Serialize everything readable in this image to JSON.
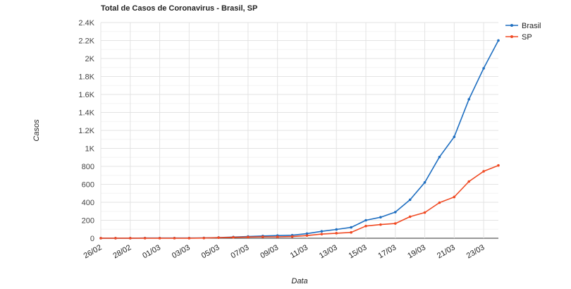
{
  "chart_data": {
    "type": "line",
    "title": "Total de Casos de Coronavirus - Brasil, SP",
    "xlabel": "Data",
    "ylabel": "Casos",
    "ylim": [
      0,
      2400
    ],
    "yticks": [
      "0",
      "200",
      "400",
      "600",
      "800",
      "1K",
      "1.2K",
      "1.4K",
      "1.6K",
      "1.8K",
      "2K",
      "2.2K",
      "2.4K"
    ],
    "ytick_values": [
      0,
      200,
      400,
      600,
      800,
      1000,
      1200,
      1400,
      1600,
      1800,
      2000,
      2200,
      2400
    ],
    "grid": true,
    "legend_position": "top-right",
    "x": [
      "26/02",
      "27/02",
      "28/02",
      "29/02",
      "01/03",
      "02/03",
      "03/03",
      "04/03",
      "05/03",
      "06/03",
      "07/03",
      "08/03",
      "09/03",
      "10/03",
      "11/03",
      "12/03",
      "13/03",
      "14/03",
      "15/03",
      "16/03",
      "17/03",
      "18/03",
      "19/03",
      "20/03",
      "21/03",
      "22/03",
      "23/03",
      "24/03"
    ],
    "xtick_labels": [
      "26/02",
      "28/02",
      "01/03",
      "03/03",
      "05/03",
      "07/03",
      "09/03",
      "11/03",
      "13/03",
      "15/03",
      "17/03",
      "19/03",
      "21/03",
      "23/03"
    ],
    "series": [
      {
        "name": "Brasil",
        "color": "#1f6fc1",
        "values": [
          1,
          1,
          1,
          2,
          2,
          2,
          2,
          4,
          8,
          13,
          19,
          25,
          30,
          34,
          52,
          77,
          98,
          121,
          200,
          234,
          291,
          428,
          621,
          904,
          1128,
          1546,
          1891,
          2201
        ]
      },
      {
        "name": "SP",
        "color": "#f04a23",
        "values": [
          1,
          1,
          1,
          1,
          1,
          1,
          1,
          2,
          6,
          10,
          13,
          16,
          16,
          19,
          30,
          46,
          56,
          65,
          136,
          152,
          164,
          240,
          286,
          396,
          459,
          631,
          745,
          810
        ]
      }
    ]
  }
}
